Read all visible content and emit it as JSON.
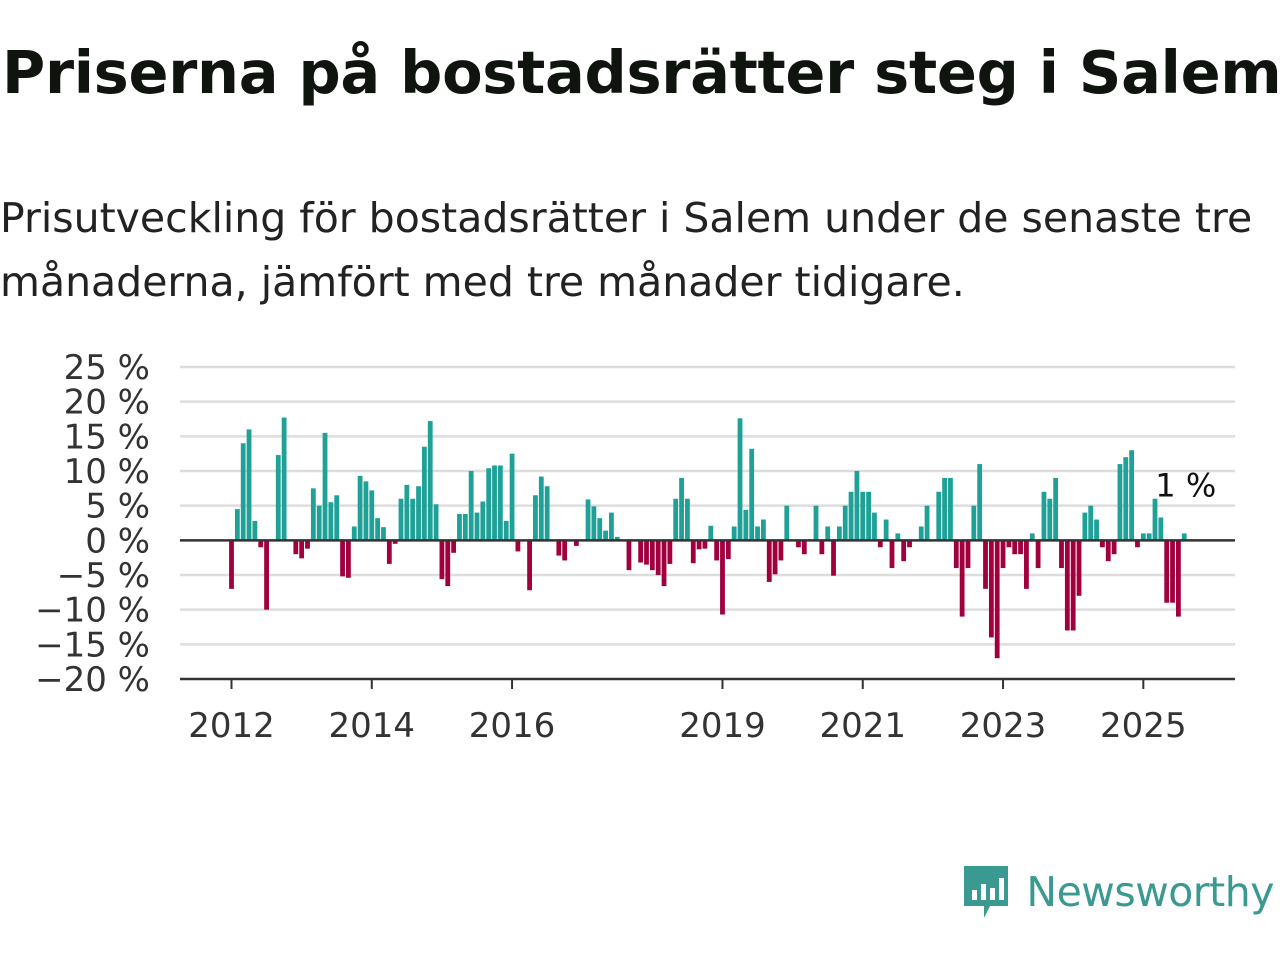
{
  "header": {
    "title": "Priserna på bostadsrätter steg i Salem",
    "subtitle": "Prisutveckling för bostadsrätter i Salem under de senaste tre månaderna, jämfört med tre månader tidigare."
  },
  "brand": {
    "name": "Newsworthy",
    "icon": "newsworthy-logo-icon",
    "color": "#3a9990"
  },
  "colors": {
    "positive": "#1fa197",
    "negative": "#a0003e",
    "grid": "#dddddd",
    "axis": "#333333"
  },
  "chart_data": {
    "type": "bar",
    "title": "Priserna på bostadsrätter steg i Salem",
    "subtitle": "Prisutveckling för bostadsrätter i Salem under de senaste tre månaderna, jämfört med tre månader tidigare.",
    "xlabel": "",
    "ylabel": "",
    "unit": "%",
    "ylim": [
      -20,
      25
    ],
    "yticks": [
      25,
      20,
      15,
      10,
      5,
      0,
      -5,
      -10,
      -15,
      -20
    ],
    "ytick_labels": [
      "25 %",
      "20 %",
      "15 %",
      "10 %",
      "5 %",
      "0 %",
      "−5 %",
      "−10 %",
      "−15 %",
      "−20 %"
    ],
    "xticks": [
      "2012",
      "2014",
      "2016",
      "2019",
      "2021",
      "2023",
      "2025"
    ],
    "grid": true,
    "annotation": {
      "label": "1 %",
      "value": 1
    },
    "frequency": "monthly",
    "start": "2012-01",
    "values": [
      -7,
      4.5,
      14,
      16,
      2.8,
      -1,
      -10,
      0,
      12.3,
      17.7,
      0,
      -2,
      -2.6,
      -1.2,
      7.5,
      5,
      15.5,
      5.5,
      6.5,
      -5.2,
      -5.4,
      2,
      9.3,
      8.5,
      7.2,
      3.2,
      1.9,
      -3.4,
      -0.5,
      6,
      8,
      6,
      7.8,
      13.5,
      17.2,
      5.2,
      -5.6,
      -6.6,
      -1.8,
      3.8,
      3.8,
      10,
      4,
      5.6,
      10.4,
      10.8,
      10.8,
      2.8,
      12.5,
      -1.6,
      0,
      -7.2,
      6.5,
      9.2,
      7.8,
      0,
      -2.2,
      -2.9,
      0,
      -0.8,
      0,
      5.9,
      4.9,
      3.2,
      1.4,
      4,
      0.5,
      0,
      -4.3,
      0,
      -3.2,
      -3.5,
      -4.3,
      -5,
      -6.6,
      -3.4,
      6,
      9,
      6,
      -3.3,
      -1.3,
      -1.2,
      2.1,
      -2.9,
      -10.7,
      -2.7,
      2,
      17.6,
      4.4,
      13.2,
      2,
      3,
      -6,
      -4.9,
      -2.9,
      5,
      0,
      -1,
      -2,
      0,
      5,
      -2,
      2,
      -5.1,
      2,
      5,
      7,
      10,
      7,
      7,
      4,
      -1,
      3,
      -4,
      1,
      -3,
      -1,
      0,
      2,
      5,
      0,
      7,
      9,
      9,
      -4,
      -11,
      -4,
      5,
      11,
      -7,
      -14,
      -17,
      -4,
      -1,
      -2,
      -2,
      -7,
      1,
      -4,
      7,
      6,
      9,
      -4,
      -13,
      -13,
      -8,
      4,
      5,
      3,
      -1,
      -3,
      -2,
      11,
      12,
      13,
      -1,
      1,
      1,
      6,
      3.3,
      -9,
      -9,
      -11,
      1
    ]
  }
}
